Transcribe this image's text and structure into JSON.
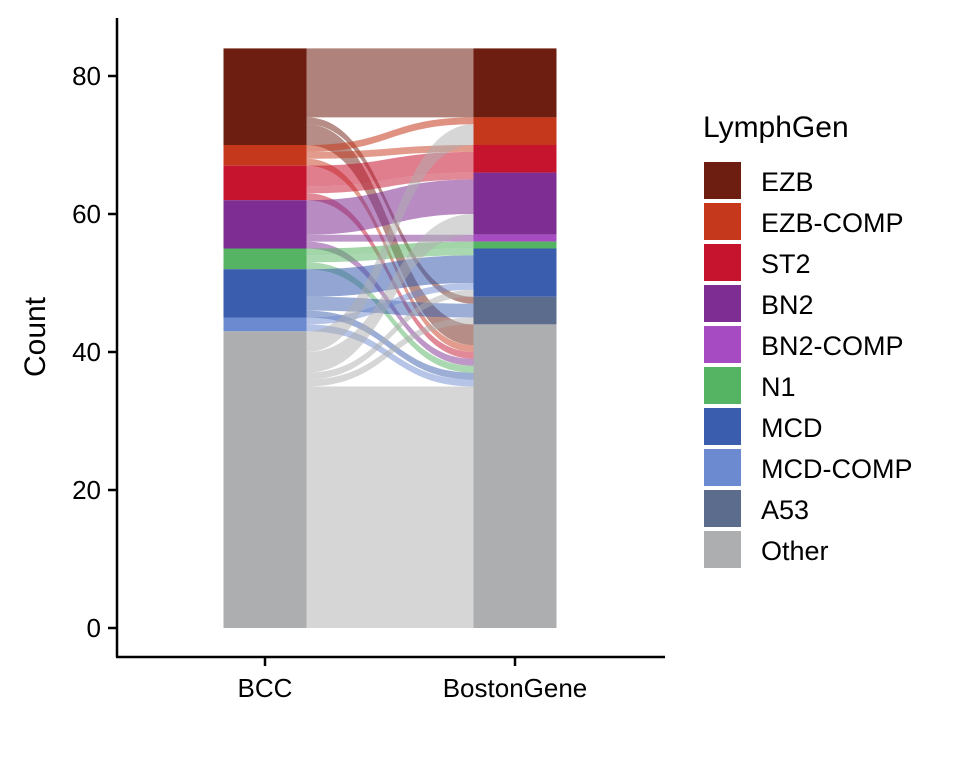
{
  "chart_data": {
    "type": "alluvial",
    "title": "",
    "xlabel": "",
    "ylabel": "Count",
    "ylim": [
      0,
      88
    ],
    "y_ticks": [
      0,
      20,
      40,
      60,
      80
    ],
    "categories": [
      "BCC",
      "BostonGene"
    ],
    "legend_title": "LymphGen",
    "legend_position": "right",
    "grid": false,
    "series": [
      {
        "name": "EZB",
        "color": "#6E1E10"
      },
      {
        "name": "EZB-COMP",
        "color": "#C6381C"
      },
      {
        "name": "ST2",
        "color": "#C6142F"
      },
      {
        "name": "BN2",
        "color": "#7E2D92"
      },
      {
        "name": "BN2-COMP",
        "color": "#A64BC2"
      },
      {
        "name": "N1",
        "color": "#55B463"
      },
      {
        "name": "MCD",
        "color": "#3A5DAE"
      },
      {
        "name": "MCD-COMP",
        "color": "#6C8ACF"
      },
      {
        "name": "A53",
        "color": "#5C6C8C"
      },
      {
        "name": "Other",
        "color": "#ADAEB0"
      }
    ],
    "stacks": [
      {
        "axis": "BCC",
        "values": {
          "EZB": 14,
          "EZB-COMP": 3,
          "ST2": 5,
          "BN2": 7,
          "BN2-COMP": 0,
          "N1": 3,
          "MCD": 7,
          "MCD-COMP": 2,
          "A53": 0,
          "Other": 43
        }
      },
      {
        "axis": "BostonGene",
        "values": {
          "EZB": 10,
          "EZB-COMP": 4,
          "ST2": 4,
          "BN2": 9,
          "BN2-COMP": 1,
          "N1": 1,
          "MCD": 7,
          "MCD-COMP": 0,
          "A53": 4,
          "Other": 44
        }
      }
    ],
    "flows": [
      {
        "from": "EZB",
        "to": "EZB",
        "value": 10
      },
      {
        "from": "EZB",
        "to": "A53",
        "value": 1
      },
      {
        "from": "EZB",
        "to": "Other",
        "value": 3
      },
      {
        "from": "EZB-COMP",
        "to": "EZB-COMP",
        "value": 1
      },
      {
        "from": "EZB-COMP",
        "to": "ST2",
        "value": 1
      },
      {
        "from": "EZB-COMP",
        "to": "Other",
        "value": 1
      },
      {
        "from": "ST2",
        "to": "ST2",
        "value": 3
      },
      {
        "from": "ST2",
        "to": "BN2",
        "value": 1
      },
      {
        "from": "ST2",
        "to": "Other",
        "value": 1
      },
      {
        "from": "BN2",
        "to": "BN2",
        "value": 5
      },
      {
        "from": "BN2",
        "to": "BN2-COMP",
        "value": 1
      },
      {
        "from": "BN2",
        "to": "Other",
        "value": 1
      },
      {
        "from": "N1",
        "to": "N1",
        "value": 1
      },
      {
        "from": "N1",
        "to": "MCD",
        "value": 1
      },
      {
        "from": "N1",
        "to": "Other",
        "value": 1
      },
      {
        "from": "MCD",
        "to": "MCD",
        "value": 4
      },
      {
        "from": "MCD",
        "to": "A53",
        "value": 2
      },
      {
        "from": "MCD",
        "to": "Other",
        "value": 1
      },
      {
        "from": "MCD-COMP",
        "to": "MCD",
        "value": 1
      },
      {
        "from": "MCD-COMP",
        "to": "Other",
        "value": 1
      },
      {
        "from": "Other",
        "to": "EZB-COMP",
        "value": 3
      },
      {
        "from": "Other",
        "to": "ST2",
        "value": 0
      },
      {
        "from": "Other",
        "to": "BN2",
        "value": 3
      },
      {
        "from": "Other",
        "to": "MCD",
        "value": 1
      },
      {
        "from": "Other",
        "to": "A53",
        "value": 1
      },
      {
        "from": "Other",
        "to": "Other",
        "value": 35
      }
    ]
  }
}
